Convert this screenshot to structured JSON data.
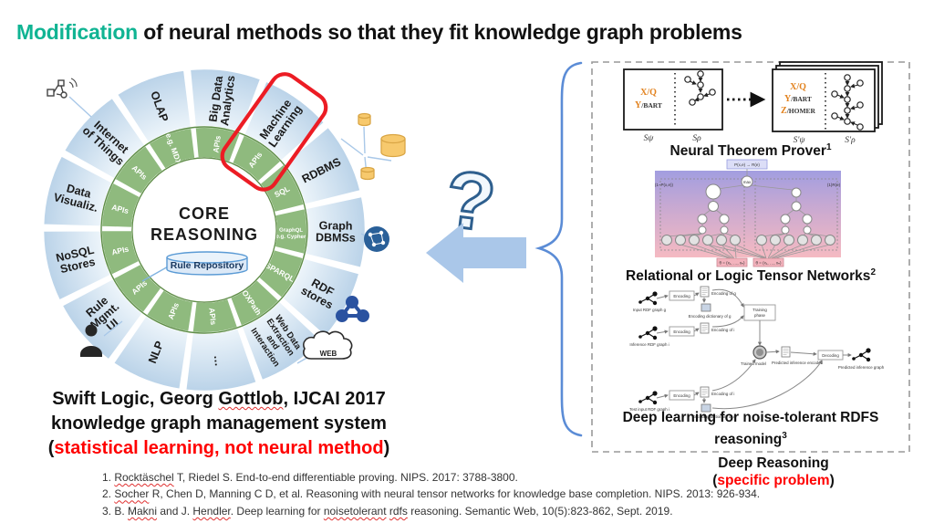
{
  "title": {
    "highlight": "Modification",
    "rest": " of neural methods so that they fit knowledge graph problems"
  },
  "wheel": {
    "start_angle": -20,
    "core_line1": "CORE",
    "core_line2": "REASONING",
    "rule_repo": "Rule Repository",
    "segments": [
      {
        "label": "OLAP",
        "ring": "e.g. MDX"
      },
      {
        "label": "Big Data|Analytics",
        "ring": "APIs"
      },
      {
        "label": "Machine|Learning",
        "ring": "APIs",
        "highlighted": true
      },
      {
        "label": "RDBMS",
        "ring": "SQL"
      },
      {
        "label": "Graph|DBMSs",
        "ring": "GraphQL|e.g. Cypher",
        "ring_small": true
      },
      {
        "label": "RDF|stores",
        "ring": "SPARQL"
      },
      {
        "label": "Web Data|Extraction|and|Interaction",
        "small": true,
        "ring": "OXPath"
      },
      {
        "label": "…",
        "ring": "APIs"
      },
      {
        "label": "NLP",
        "ring": "APIs"
      },
      {
        "label": "Rule|Mgmt.|UI",
        "ring": "APIs"
      },
      {
        "label": "NoSQL|Stores",
        "ring": "APIs"
      },
      {
        "label": "Data|Visualiz.",
        "ring": "APIs"
      },
      {
        "label": "Internet|of Things",
        "ring": "APIs"
      }
    ],
    "caption": {
      "line1": "Swift Logic, Georg Gottlob, IJCAI 2017",
      "line2": "knowledge graph management system",
      "line3_prefix": "(",
      "line3_red": "statistical learning, not neural method",
      "line3_suffix": ")"
    }
  },
  "icons": {
    "web_label": "WEB"
  },
  "figures": {
    "ntp": {
      "caption": "Neural Theorem Prover",
      "sup": "1",
      "l1h": "X/Q",
      "l1r": "",
      "l2h": "Y",
      "l2r": "/BART",
      "l3h": "Z",
      "l3r": "/HOMER",
      "sub1": "Sψ",
      "sub2": "Sρ",
      "sub3": "S′ψ",
      "sub4": "S′ρ"
    },
    "ltn": {
      "caption": "Relational or Logic Tensor Networks",
      "sup": "2",
      "rule_label": "P(x,e) → R(e)",
      "max_label": "max",
      "left_tag": "(1−P(x,e))",
      "right_tag": "(1)R(e)",
      "theta1": "θ = (x₁, …, xₙ)",
      "theta2": "θ = (x₁, …, xₙ)"
    },
    "rdfs": {
      "caption": "Deep learning for noise-tolerant RDFS reasoning",
      "sup": "3",
      "labels": {
        "in1": "Input RDF graph g",
        "enc": "Encoding",
        "encg": "Encoding of g",
        "dictg": "Encoding dictionary of g",
        "in2": "Inference RDF graph i",
        "enci": "Encoding of i",
        "train1": "Training",
        "train2": "phase",
        "trained": "Trained model",
        "pred": "Predicted inference encoded",
        "dec": "Decoding",
        "out": "Predicted inference graph",
        "in3": "Test input RDF graph i",
        "dicti": "Encoding dictionary of i"
      }
    }
  },
  "deep_reasoning": {
    "line1": "Deep Reasoning",
    "line2_prefix": "(",
    "line2_red": "specific problem",
    "line2_suffix": ")"
  },
  "references": [
    "1. Rocktäschel T, Riedel S. End-to-end differentiable proving. NIPS. 2017: 3788-3800.",
    "2. Socher R, Chen D, Manning C D, et al. Reasoning with neural tensor networks for knowledge base completion. NIPS. 2013: 926-934.",
    "3. B. Makni and J. Hendler. Deep learning for noisetolerant rdfs reasoning. Semantic Web, 10(5):823-862, Sept. 2019."
  ],
  "misspelled_words": [
    "Rocktäschel",
    "Socher",
    "Makni",
    "Hendler",
    "noisetolerant",
    "rdfs",
    "Gottlob"
  ]
}
